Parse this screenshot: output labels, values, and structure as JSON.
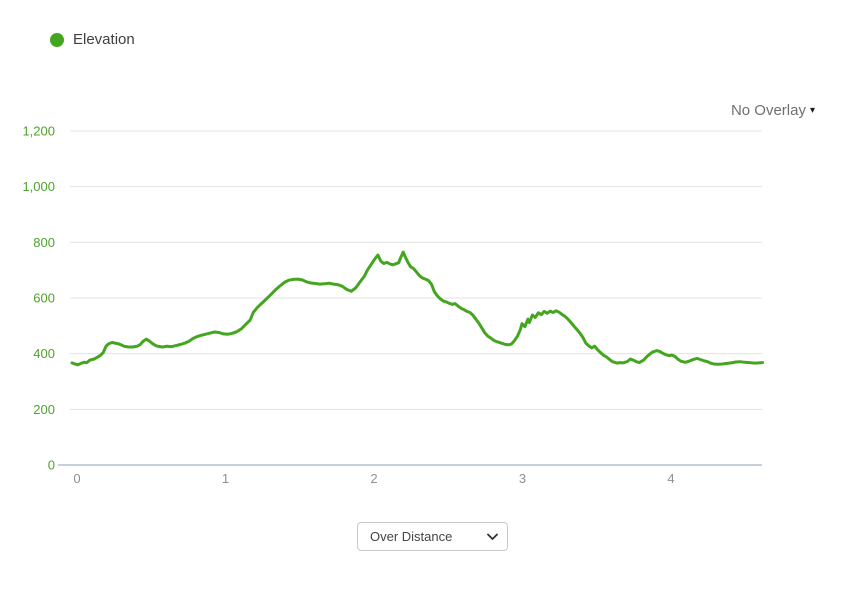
{
  "legend": {
    "label": "Elevation",
    "dot_color": "#44a51f"
  },
  "overlay_selector": {
    "label": "No Overlay",
    "caret": "▾"
  },
  "x_mode_selector": {
    "value": "Over Distance"
  },
  "colors": {
    "line": "#44a51f",
    "y_label": "#4fa32d",
    "x_label": "#8f8f8f",
    "gridline": "#e3e3e3",
    "baseline": "#c8d0dc"
  },
  "chart_data": {
    "type": "line",
    "title": "",
    "xlabel": "",
    "ylabel": "",
    "grid": true,
    "legend_position": "top-left",
    "x_ticks": [
      0,
      1,
      2,
      3,
      4
    ],
    "x_range": [
      0,
      4.65
    ],
    "y_ticks": [
      0,
      200,
      400,
      600,
      800,
      1000,
      1200
    ],
    "y_tick_labels": [
      "0",
      "200",
      "400",
      "600",
      "800",
      "1,000",
      "1,200"
    ],
    "y_range": [
      0,
      1200
    ],
    "series": [
      {
        "name": "Elevation",
        "color": "#44a51f",
        "points": [
          [
            0,
            367
          ],
          [
            0.02,
            363
          ],
          [
            0.04,
            360
          ],
          [
            0.06,
            365
          ],
          [
            0.08,
            369
          ],
          [
            0.1,
            368
          ],
          [
            0.12,
            377
          ],
          [
            0.15,
            381
          ],
          [
            0.17,
            387
          ],
          [
            0.19,
            393
          ],
          [
            0.21,
            404
          ],
          [
            0.23,
            428
          ],
          [
            0.25,
            436
          ],
          [
            0.27,
            440
          ],
          [
            0.29,
            438
          ],
          [
            0.31,
            436
          ],
          [
            0.33,
            432
          ],
          [
            0.35,
            427
          ],
          [
            0.38,
            424
          ],
          [
            0.41,
            424
          ],
          [
            0.44,
            427
          ],
          [
            0.46,
            433
          ],
          [
            0.48,
            445
          ],
          [
            0.5,
            452
          ],
          [
            0.52,
            446
          ],
          [
            0.54,
            437
          ],
          [
            0.56,
            430
          ],
          [
            0.58,
            426
          ],
          [
            0.61,
            424
          ],
          [
            0.64,
            427
          ],
          [
            0.67,
            425
          ],
          [
            0.7,
            429
          ],
          [
            0.73,
            433
          ],
          [
            0.76,
            438
          ],
          [
            0.79,
            445
          ],
          [
            0.81,
            453
          ],
          [
            0.84,
            461
          ],
          [
            0.87,
            466
          ],
          [
            0.9,
            470
          ],
          [
            0.93,
            474
          ],
          [
            0.96,
            478
          ],
          [
            0.99,
            476
          ],
          [
            1.02,
            471
          ],
          [
            1.05,
            470
          ],
          [
            1.08,
            473
          ],
          [
            1.11,
            479
          ],
          [
            1.14,
            489
          ],
          [
            1.17,
            505
          ],
          [
            1.2,
            521
          ],
          [
            1.22,
            548
          ],
          [
            1.25,
            567
          ],
          [
            1.28,
            582
          ],
          [
            1.31,
            597
          ],
          [
            1.34,
            613
          ],
          [
            1.37,
            629
          ],
          [
            1.4,
            643
          ],
          [
            1.43,
            656
          ],
          [
            1.46,
            664
          ],
          [
            1.49,
            667
          ],
          [
            1.52,
            668
          ],
          [
            1.55,
            665
          ],
          [
            1.58,
            658
          ],
          [
            1.61,
            654
          ],
          [
            1.64,
            652
          ],
          [
            1.67,
            650
          ],
          [
            1.7,
            651
          ],
          [
            1.73,
            653
          ],
          [
            1.76,
            650
          ],
          [
            1.79,
            648
          ],
          [
            1.82,
            642
          ],
          [
            1.85,
            631
          ],
          [
            1.88,
            624
          ],
          [
            1.91,
            636
          ],
          [
            1.94,
            658
          ],
          [
            1.97,
            679
          ],
          [
            1.99,
            701
          ],
          [
            2.02,
            725
          ],
          [
            2.04,
            741
          ],
          [
            2.06,
            754
          ],
          [
            2.07,
            743
          ],
          [
            2.08,
            732
          ],
          [
            2.1,
            724
          ],
          [
            2.12,
            728
          ],
          [
            2.14,
            723
          ],
          [
            2.16,
            719
          ],
          [
            2.18,
            723
          ],
          [
            2.2,
            727
          ],
          [
            2.21,
            741
          ],
          [
            2.23,
            765
          ],
          [
            2.24,
            753
          ],
          [
            2.26,
            730
          ],
          [
            2.28,
            712
          ],
          [
            2.3,
            706
          ],
          [
            2.32,
            693
          ],
          [
            2.34,
            680
          ],
          [
            2.36,
            672
          ],
          [
            2.38,
            668
          ],
          [
            2.4,
            663
          ],
          [
            2.42,
            650
          ],
          [
            2.44,
            623
          ],
          [
            2.46,
            608
          ],
          [
            2.48,
            597
          ],
          [
            2.5,
            589
          ],
          [
            2.52,
            586
          ],
          [
            2.54,
            581
          ],
          [
            2.56,
            577
          ],
          [
            2.58,
            580
          ],
          [
            2.6,
            571
          ],
          [
            2.62,
            563
          ],
          [
            2.64,
            558
          ],
          [
            2.66,
            552
          ],
          [
            2.68,
            548
          ],
          [
            2.7,
            538
          ],
          [
            2.72,
            524
          ],
          [
            2.74,
            509
          ],
          [
            2.76,
            492
          ],
          [
            2.78,
            475
          ],
          [
            2.8,
            463
          ],
          [
            2.82,
            456
          ],
          [
            2.84,
            448
          ],
          [
            2.86,
            443
          ],
          [
            2.88,
            440
          ],
          [
            2.9,
            436
          ],
          [
            2.92,
            433
          ],
          [
            2.94,
            432
          ],
          [
            2.96,
            435
          ],
          [
            2.98,
            447
          ],
          [
            3,
            463
          ],
          [
            3.02,
            488
          ],
          [
            3.03,
            508
          ],
          [
            3.05,
            497
          ],
          [
            3.07,
            524
          ],
          [
            3.08,
            512
          ],
          [
            3.1,
            539
          ],
          [
            3.12,
            530
          ],
          [
            3.14,
            547
          ],
          [
            3.16,
            540
          ],
          [
            3.18,
            552
          ],
          [
            3.2,
            545
          ],
          [
            3.22,
            553
          ],
          [
            3.24,
            548
          ],
          [
            3.26,
            554
          ],
          [
            3.28,
            549
          ],
          [
            3.3,
            541
          ],
          [
            3.32,
            534
          ],
          [
            3.34,
            524
          ],
          [
            3.36,
            512
          ],
          [
            3.38,
            499
          ],
          [
            3.4,
            487
          ],
          [
            3.42,
            474
          ],
          [
            3.44,
            459
          ],
          [
            3.46,
            438
          ],
          [
            3.48,
            428
          ],
          [
            3.5,
            421
          ],
          [
            3.52,
            427
          ],
          [
            3.54,
            414
          ],
          [
            3.56,
            403
          ],
          [
            3.58,
            394
          ],
          [
            3.6,
            388
          ],
          [
            3.62,
            379
          ],
          [
            3.64,
            371
          ],
          [
            3.67,
            366
          ],
          [
            3.69,
            368
          ],
          [
            3.71,
            367
          ],
          [
            3.74,
            372
          ],
          [
            3.76,
            381
          ],
          [
            3.78,
            377
          ],
          [
            3.8,
            371
          ],
          [
            3.82,
            368
          ],
          [
            3.85,
            377
          ],
          [
            3.87,
            389
          ],
          [
            3.89,
            398
          ],
          [
            3.91,
            406
          ],
          [
            3.94,
            411
          ],
          [
            3.96,
            407
          ],
          [
            3.98,
            401
          ],
          [
            4,
            396
          ],
          [
            4.02,
            393
          ],
          [
            4.04,
            395
          ],
          [
            4.06,
            390
          ],
          [
            4.08,
            380
          ],
          [
            4.1,
            373
          ],
          [
            4.13,
            369
          ],
          [
            4.15,
            372
          ],
          [
            4.17,
            376
          ],
          [
            4.19,
            380
          ],
          [
            4.21,
            383
          ],
          [
            4.23,
            379
          ],
          [
            4.26,
            374
          ],
          [
            4.28,
            371
          ],
          [
            4.3,
            366
          ],
          [
            4.32,
            363
          ],
          [
            4.35,
            362
          ],
          [
            4.38,
            363
          ],
          [
            4.41,
            365
          ],
          [
            4.44,
            367
          ],
          [
            4.47,
            370
          ],
          [
            4.5,
            371
          ],
          [
            4.53,
            369
          ],
          [
            4.56,
            368
          ],
          [
            4.6,
            366
          ],
          [
            4.65,
            368
          ]
        ]
      }
    ]
  }
}
